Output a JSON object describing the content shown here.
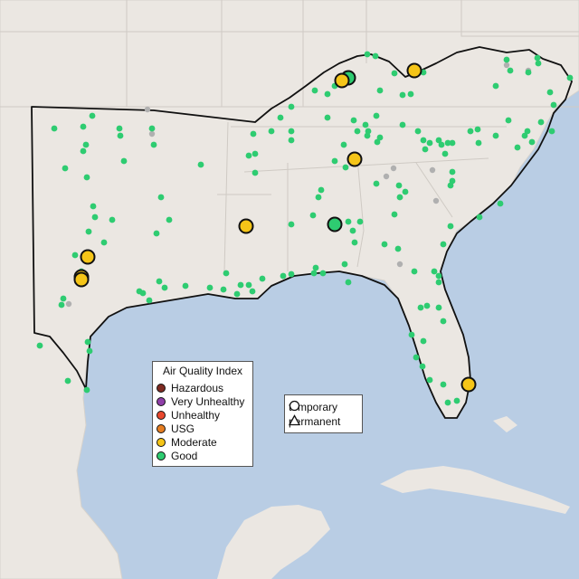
{
  "legend": {
    "title": "Air Quality Index",
    "items": [
      {
        "label": "Hazardous",
        "color": "#7e2b22"
      },
      {
        "label": "Very Unhealthy",
        "color": "#8f3fa8"
      },
      {
        "label": "Unhealthy",
        "color": "#e8482e"
      },
      {
        "label": "USG",
        "color": "#e67e22"
      },
      {
        "label": "Moderate",
        "color": "#f5c518"
      },
      {
        "label": "Good",
        "color": "#2ecc71"
      }
    ]
  },
  "shape_legend": {
    "items": [
      {
        "label": "temporary",
        "icon": "circle-icon"
      },
      {
        "label": "permanent",
        "icon": "triangle-icon"
      }
    ]
  },
  "colors": {
    "water": "#b9cde4",
    "land": "#ebe7e2",
    "no_data_marker": "#b0b0b0"
  }
}
